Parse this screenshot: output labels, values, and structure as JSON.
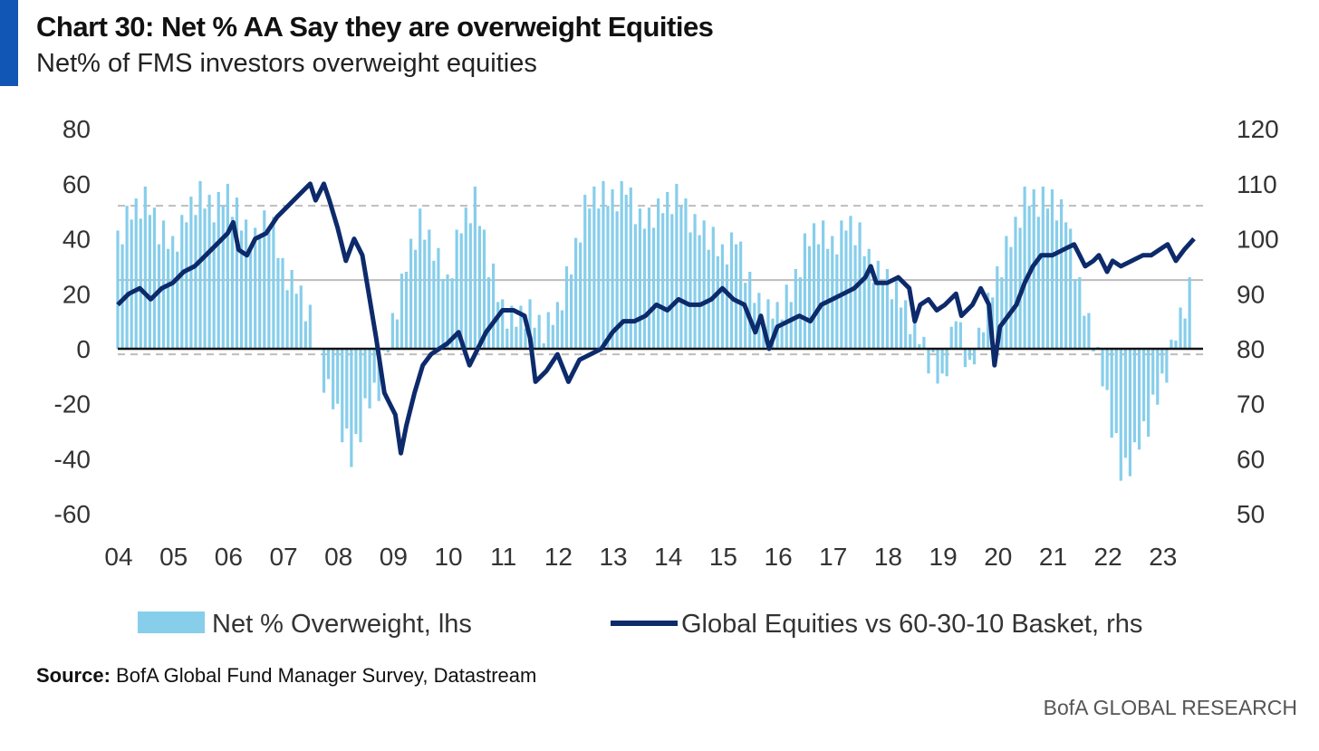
{
  "header": {
    "title": "Chart 30: Net % AA Say they are overweight Equities",
    "subtitle": "Net% of FMS investors overweight equities"
  },
  "source": {
    "label": "Source:",
    "text": "BofA Global Fund Manager Survey, Datastream"
  },
  "footer": {
    "brand": "BofA GLOBAL RESEARCH"
  },
  "colors": {
    "accent": "#1256b5",
    "bars": "#87ceeb",
    "line": "#0d2a6b",
    "zero_line": "#111111",
    "ref_line": "#bdbdbd"
  },
  "chart_data": {
    "type": "bar",
    "x_start_year": 2004,
    "x_end_year": 2023.58,
    "x_tick_labels": [
      "04",
      "05",
      "06",
      "07",
      "08",
      "09",
      "10",
      "11",
      "12",
      "13",
      "14",
      "15",
      "16",
      "17",
      "18",
      "19",
      "20",
      "21",
      "22",
      "23"
    ],
    "ylim_left": [
      -60,
      80
    ],
    "ylim_right": [
      50,
      120
    ],
    "yticks_left": [
      "80",
      "60",
      "40",
      "20",
      "0",
      "-20",
      "-40",
      "-60"
    ],
    "yticks_right": [
      "120",
      "110",
      "100",
      "90",
      "80",
      "70",
      "60",
      "50"
    ],
    "reference_lines_left": [
      52,
      25,
      -2
    ],
    "legend": {
      "bars_label": "Net % Overweight, lhs",
      "line_label": "Global Equities vs 60-30-10 Basket, rhs"
    },
    "series": [
      {
        "name": "Net % Overweight, lhs",
        "axis": "left",
        "type": "bar",
        "points": [
          [
            2004.0,
            38
          ],
          [
            2004.25,
            50
          ],
          [
            2004.5,
            55
          ],
          [
            2004.75,
            42
          ],
          [
            2005.0,
            38
          ],
          [
            2005.25,
            48
          ],
          [
            2005.5,
            55
          ],
          [
            2005.75,
            52
          ],
          [
            2006.0,
            55
          ],
          [
            2006.25,
            46
          ],
          [
            2006.5,
            40
          ],
          [
            2006.75,
            48
          ],
          [
            2007.0,
            30
          ],
          [
            2007.25,
            22
          ],
          [
            2007.5,
            10
          ],
          [
            2007.75,
            -10
          ],
          [
            2008.0,
            -25
          ],
          [
            2008.25,
            -40
          ],
          [
            2008.5,
            -22
          ],
          [
            2008.75,
            -15
          ],
          [
            2009.0,
            10
          ],
          [
            2009.25,
            30
          ],
          [
            2009.5,
            45
          ],
          [
            2009.75,
            38
          ],
          [
            2010.0,
            22
          ],
          [
            2010.25,
            45
          ],
          [
            2010.5,
            55
          ],
          [
            2010.75,
            30
          ],
          [
            2011.0,
            15
          ],
          [
            2011.25,
            10
          ],
          [
            2011.5,
            12
          ],
          [
            2011.75,
            8
          ],
          [
            2012.0,
            12
          ],
          [
            2012.25,
            30
          ],
          [
            2012.5,
            52
          ],
          [
            2012.75,
            55
          ],
          [
            2013.0,
            55
          ],
          [
            2013.25,
            58
          ],
          [
            2013.5,
            45
          ],
          [
            2013.75,
            50
          ],
          [
            2014.0,
            52
          ],
          [
            2014.25,
            55
          ],
          [
            2014.5,
            45
          ],
          [
            2014.75,
            40
          ],
          [
            2015.0,
            35
          ],
          [
            2015.25,
            40
          ],
          [
            2015.5,
            22
          ],
          [
            2015.75,
            15
          ],
          [
            2016.0,
            12
          ],
          [
            2016.25,
            20
          ],
          [
            2016.5,
            38
          ],
          [
            2016.75,
            42
          ],
          [
            2017.0,
            38
          ],
          [
            2017.25,
            45
          ],
          [
            2017.5,
            40
          ],
          [
            2017.75,
            30
          ],
          [
            2018.0,
            24
          ],
          [
            2018.25,
            18
          ],
          [
            2018.5,
            8
          ],
          [
            2018.75,
            -5
          ],
          [
            2019.0,
            -12
          ],
          [
            2019.25,
            12
          ],
          [
            2019.5,
            -10
          ],
          [
            2019.75,
            12
          ],
          [
            2020.0,
            25
          ],
          [
            2020.25,
            40
          ],
          [
            2020.5,
            55
          ],
          [
            2020.75,
            52
          ],
          [
            2021.0,
            55
          ],
          [
            2021.25,
            48
          ],
          [
            2021.5,
            20
          ],
          [
            2021.75,
            5
          ],
          [
            2022.0,
            -20
          ],
          [
            2022.25,
            -45
          ],
          [
            2022.5,
            -38
          ],
          [
            2022.75,
            -28
          ],
          [
            2023.0,
            -12
          ],
          [
            2023.25,
            5
          ],
          [
            2023.5,
            20
          ]
        ]
      },
      {
        "name": "Global Equities vs 60-30-10 Basket, rhs",
        "axis": "right",
        "type": "line",
        "points": [
          [
            2004.0,
            88
          ],
          [
            2004.2,
            90
          ],
          [
            2004.4,
            91
          ],
          [
            2004.6,
            89
          ],
          [
            2004.8,
            91
          ],
          [
            2005.0,
            92
          ],
          [
            2005.2,
            94
          ],
          [
            2005.4,
            95
          ],
          [
            2005.6,
            97
          ],
          [
            2005.8,
            99
          ],
          [
            2006.0,
            101
          ],
          [
            2006.1,
            103
          ],
          [
            2006.2,
            98
          ],
          [
            2006.35,
            97
          ],
          [
            2006.5,
            100
          ],
          [
            2006.7,
            101
          ],
          [
            2006.9,
            104
          ],
          [
            2007.1,
            106
          ],
          [
            2007.3,
            108
          ],
          [
            2007.5,
            110
          ],
          [
            2007.6,
            107
          ],
          [
            2007.75,
            110
          ],
          [
            2007.85,
            107
          ],
          [
            2008.0,
            102
          ],
          [
            2008.15,
            96
          ],
          [
            2008.3,
            100
          ],
          [
            2008.45,
            97
          ],
          [
            2008.55,
            91
          ],
          [
            2008.7,
            82
          ],
          [
            2008.85,
            72
          ],
          [
            2008.95,
            70
          ],
          [
            2009.05,
            68
          ],
          [
            2009.15,
            61
          ],
          [
            2009.25,
            66
          ],
          [
            2009.4,
            72
          ],
          [
            2009.55,
            77
          ],
          [
            2009.7,
            79
          ],
          [
            2009.85,
            80
          ],
          [
            2010.0,
            81
          ],
          [
            2010.2,
            83
          ],
          [
            2010.4,
            77
          ],
          [
            2010.55,
            80
          ],
          [
            2010.7,
            83
          ],
          [
            2010.85,
            85
          ],
          [
            2011.0,
            87
          ],
          [
            2011.2,
            87
          ],
          [
            2011.4,
            86
          ],
          [
            2011.5,
            82
          ],
          [
            2011.6,
            74
          ],
          [
            2011.8,
            76
          ],
          [
            2012.0,
            79
          ],
          [
            2012.2,
            74
          ],
          [
            2012.4,
            78
          ],
          [
            2012.6,
            79
          ],
          [
            2012.8,
            80
          ],
          [
            2013.0,
            83
          ],
          [
            2013.2,
            85
          ],
          [
            2013.4,
            85
          ],
          [
            2013.6,
            86
          ],
          [
            2013.8,
            88
          ],
          [
            2014.0,
            87
          ],
          [
            2014.2,
            89
          ],
          [
            2014.4,
            88
          ],
          [
            2014.6,
            88
          ],
          [
            2014.8,
            89
          ],
          [
            2015.0,
            91
          ],
          [
            2015.2,
            89
          ],
          [
            2015.4,
            88
          ],
          [
            2015.6,
            83
          ],
          [
            2015.7,
            86
          ],
          [
            2015.85,
            80
          ],
          [
            2016.0,
            84
          ],
          [
            2016.2,
            85
          ],
          [
            2016.4,
            86
          ],
          [
            2016.6,
            85
          ],
          [
            2016.8,
            88
          ],
          [
            2017.0,
            89
          ],
          [
            2017.2,
            90
          ],
          [
            2017.4,
            91
          ],
          [
            2017.6,
            93
          ],
          [
            2017.7,
            95
          ],
          [
            2017.8,
            92
          ],
          [
            2018.0,
            92
          ],
          [
            2018.2,
            93
          ],
          [
            2018.4,
            91
          ],
          [
            2018.5,
            85
          ],
          [
            2018.6,
            88
          ],
          [
            2018.75,
            89
          ],
          [
            2018.9,
            87
          ],
          [
            2019.05,
            88
          ],
          [
            2019.25,
            90
          ],
          [
            2019.35,
            86
          ],
          [
            2019.55,
            88
          ],
          [
            2019.7,
            91
          ],
          [
            2019.85,
            88
          ],
          [
            2019.95,
            77
          ],
          [
            2020.05,
            84
          ],
          [
            2020.2,
            86
          ],
          [
            2020.35,
            88
          ],
          [
            2020.5,
            92
          ],
          [
            2020.65,
            95
          ],
          [
            2020.8,
            97
          ],
          [
            2021.0,
            97
          ],
          [
            2021.2,
            98
          ],
          [
            2021.4,
            99
          ],
          [
            2021.5,
            97
          ],
          [
            2021.6,
            95
          ],
          [
            2021.75,
            96
          ],
          [
            2021.85,
            97
          ],
          [
            2022.0,
            94
          ],
          [
            2022.1,
            96
          ],
          [
            2022.25,
            95
          ],
          [
            2022.45,
            96
          ],
          [
            2022.65,
            97
          ],
          [
            2022.8,
            97
          ],
          [
            2022.95,
            98
          ],
          [
            2023.1,
            99
          ],
          [
            2023.25,
            96
          ],
          [
            2023.4,
            98
          ],
          [
            2023.58,
            100
          ]
        ]
      }
    ]
  }
}
